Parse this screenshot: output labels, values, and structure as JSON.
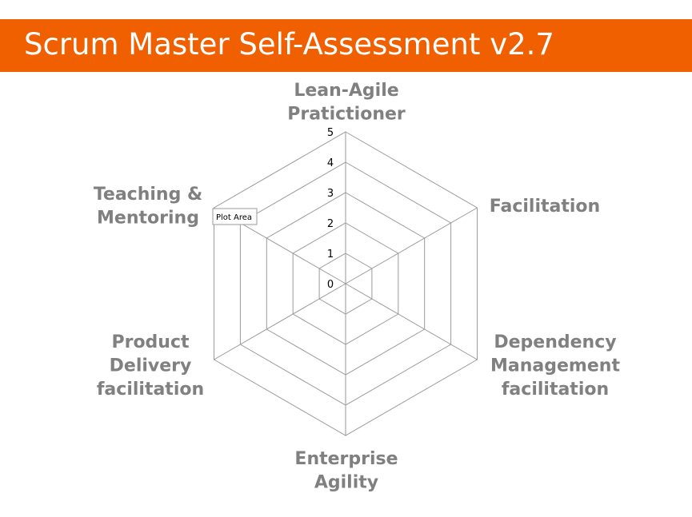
{
  "header": {
    "title": "Scrum Master Self-Assessment v2.7",
    "background_color": "#f06000"
  },
  "tooltip": {
    "label": "Plot Area"
  },
  "chart_data": {
    "type": "radar",
    "categories": [
      [
        "Lean-Agile",
        "Pratictioner"
      ],
      [
        "Facilitation"
      ],
      [
        "Dependency",
        "Management",
        "facilitation"
      ],
      [
        "Enterprise",
        "Agility"
      ],
      [
        "Product",
        "Delivery",
        "facilitation"
      ],
      [
        "Teaching &",
        "Mentoring"
      ]
    ],
    "scale": {
      "min": 0,
      "max": 5,
      "step": 1
    },
    "ticks": [
      "0",
      "1",
      "2",
      "3",
      "4",
      "5"
    ],
    "series": [],
    "grid": true,
    "grid_color": "#9a9a9a",
    "label_color": "#808080"
  }
}
